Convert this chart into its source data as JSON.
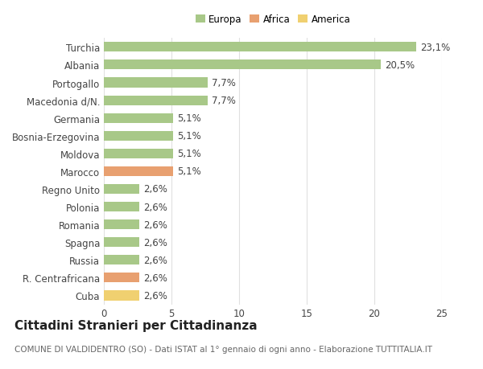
{
  "categories": [
    "Cuba",
    "R. Centrafricana",
    "Russia",
    "Spagna",
    "Romania",
    "Polonia",
    "Regno Unito",
    "Marocco",
    "Moldova",
    "Bosnia-Erzegovina",
    "Germania",
    "Macedonia d/N.",
    "Portogallo",
    "Albania",
    "Turchia"
  ],
  "values": [
    2.6,
    2.6,
    2.6,
    2.6,
    2.6,
    2.6,
    2.6,
    5.1,
    5.1,
    5.1,
    5.1,
    7.7,
    7.7,
    20.5,
    23.1
  ],
  "labels": [
    "2,6%",
    "2,6%",
    "2,6%",
    "2,6%",
    "2,6%",
    "2,6%",
    "2,6%",
    "5,1%",
    "5,1%",
    "5,1%",
    "5,1%",
    "7,7%",
    "7,7%",
    "20,5%",
    "23,1%"
  ],
  "colors": [
    "#f0d070",
    "#e8a070",
    "#a8c888",
    "#a8c888",
    "#a8c888",
    "#a8c888",
    "#a8c888",
    "#e8a070",
    "#a8c888",
    "#a8c888",
    "#a8c888",
    "#a8c888",
    "#a8c888",
    "#a8c888",
    "#a8c888"
  ],
  "legend_labels": [
    "Europa",
    "Africa",
    "America"
  ],
  "legend_colors": [
    "#a8c888",
    "#e8a070",
    "#f0d070"
  ],
  "title": "Cittadini Stranieri per Cittadinanza",
  "subtitle": "COMUNE DI VALDIDENTRO (SO) - Dati ISTAT al 1° gennaio di ogni anno - Elaborazione TUTTITALIA.IT",
  "xlim": [
    0,
    25
  ],
  "xticks": [
    0,
    5,
    10,
    15,
    20,
    25
  ],
  "bg_color": "#ffffff",
  "grid_color": "#e0e0e0",
  "bar_height": 0.55,
  "label_fontsize": 8.5,
  "tick_fontsize": 8.5,
  "title_fontsize": 11,
  "subtitle_fontsize": 7.5
}
